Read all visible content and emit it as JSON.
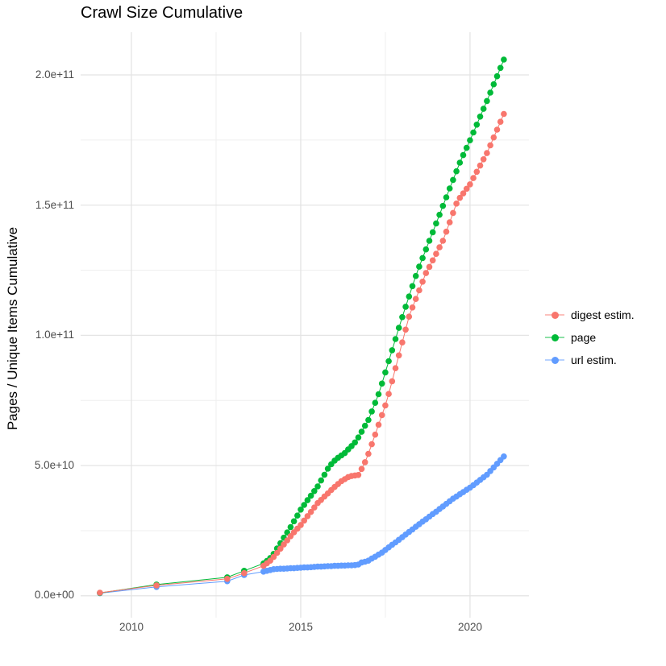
{
  "chart_data": {
    "type": "scatter",
    "title": "Crawl Size Cumulative",
    "xlabel": "",
    "ylabel": "Pages / Unique Items Cumulative",
    "value_unit": "items, stored in billions (1e9)",
    "legend_position": "right",
    "grid": {
      "major_color": "#e4e4e4",
      "minor_color": "#efefef"
    },
    "x_domain": [
      2008.5,
      2021.74
    ],
    "y_domain_billions": [
      -8.4,
      216.4
    ],
    "x_ticks": [
      {
        "value": 2010,
        "label": "2010"
      },
      {
        "value": 2015,
        "label": "2015"
      },
      {
        "value": 2020,
        "label": "2020"
      }
    ],
    "x_minor_ticks": [
      2012.5,
      2017.5
    ],
    "y_ticks": [
      {
        "value": 0,
        "label": "0.0e+00"
      },
      {
        "value": 50,
        "label": "5.0e+10"
      },
      {
        "value": 100,
        "label": "1.0e+11"
      },
      {
        "value": 150,
        "label": "1.5e+11"
      },
      {
        "value": 200,
        "label": "2.0e+11"
      }
    ],
    "y_minor_ticks": [
      25,
      75,
      125,
      175
    ],
    "series": [
      {
        "name": "digest estim.",
        "color": "#F8766D",
        "points": [
          [
            2009.07,
            1.2
          ],
          [
            2010.74,
            4.0
          ],
          [
            2012.83,
            6.5
          ],
          [
            2013.33,
            8.7
          ],
          [
            2013.9,
            11.5
          ],
          [
            2014.0,
            12.5
          ],
          [
            2014.1,
            13.5
          ],
          [
            2014.2,
            14.9
          ],
          [
            2014.3,
            16.5
          ],
          [
            2014.4,
            18.1
          ],
          [
            2014.5,
            19.7
          ],
          [
            2014.6,
            21.3
          ],
          [
            2014.7,
            22.9
          ],
          [
            2014.8,
            24.4
          ],
          [
            2014.9,
            25.8
          ],
          [
            2015.0,
            27.2
          ],
          [
            2015.1,
            28.9
          ],
          [
            2015.2,
            30.6
          ],
          [
            2015.3,
            32.2
          ],
          [
            2015.4,
            33.9
          ],
          [
            2015.5,
            35.6
          ],
          [
            2015.6,
            36.8
          ],
          [
            2015.7,
            38.1
          ],
          [
            2015.8,
            39.3
          ],
          [
            2015.9,
            40.6
          ],
          [
            2016.0,
            41.8
          ],
          [
            2016.1,
            42.9
          ],
          [
            2016.2,
            44.0
          ],
          [
            2016.3,
            44.8
          ],
          [
            2016.4,
            45.6
          ],
          [
            2016.5,
            46.0
          ],
          [
            2016.6,
            46.2
          ],
          [
            2016.7,
            46.4
          ],
          [
            2016.8,
            48.7
          ],
          [
            2016.9,
            51.3
          ],
          [
            2017.0,
            54.5
          ],
          [
            2017.1,
            58.2
          ],
          [
            2017.2,
            61.9
          ],
          [
            2017.3,
            65.7
          ],
          [
            2017.4,
            69.4
          ],
          [
            2017.5,
            73.1
          ],
          [
            2017.6,
            77.5
          ],
          [
            2017.7,
            82.4
          ],
          [
            2017.8,
            87.4
          ],
          [
            2017.9,
            92.3
          ],
          [
            2018.0,
            97.3
          ],
          [
            2018.1,
            102.2
          ],
          [
            2018.2,
            107.2
          ],
          [
            2018.3,
            110.7
          ],
          [
            2018.4,
            114.0
          ],
          [
            2018.5,
            117.3
          ],
          [
            2018.6,
            120.6
          ],
          [
            2018.7,
            123.9
          ],
          [
            2018.8,
            126.3
          ],
          [
            2018.9,
            128.8
          ],
          [
            2019.0,
            131.3
          ],
          [
            2019.1,
            133.8
          ],
          [
            2019.2,
            136.3
          ],
          [
            2019.3,
            139.8
          ],
          [
            2019.4,
            143.4
          ],
          [
            2019.5,
            147.0
          ],
          [
            2019.6,
            150.6
          ],
          [
            2019.7,
            152.8
          ],
          [
            2019.8,
            154.5
          ],
          [
            2019.9,
            156.3
          ],
          [
            2020.0,
            158.0
          ],
          [
            2020.1,
            160.4
          ],
          [
            2020.2,
            162.8
          ],
          [
            2020.3,
            165.2
          ],
          [
            2020.4,
            167.6
          ],
          [
            2020.5,
            170.0
          ],
          [
            2020.6,
            173.0
          ],
          [
            2020.7,
            176.0
          ],
          [
            2020.8,
            179.0
          ],
          [
            2020.9,
            182.0
          ],
          [
            2021.0,
            185.0
          ]
        ]
      },
      {
        "name": "page",
        "color": "#00BA38",
        "points": [
          [
            2009.07,
            1.1
          ],
          [
            2010.74,
            4.3
          ],
          [
            2012.83,
            7.1
          ],
          [
            2013.33,
            9.6
          ],
          [
            2013.9,
            12.4
          ],
          [
            2014.0,
            13.4
          ],
          [
            2014.1,
            14.5
          ],
          [
            2014.2,
            16.1
          ],
          [
            2014.3,
            18.2
          ],
          [
            2014.4,
            20.2
          ],
          [
            2014.5,
            22.3
          ],
          [
            2014.6,
            24.3
          ],
          [
            2014.7,
            26.4
          ],
          [
            2014.8,
            28.6
          ],
          [
            2014.9,
            30.8
          ],
          [
            2015.0,
            33.1
          ],
          [
            2015.1,
            34.9
          ],
          [
            2015.2,
            36.7
          ],
          [
            2015.3,
            38.4
          ],
          [
            2015.4,
            40.2
          ],
          [
            2015.5,
            42.0
          ],
          [
            2015.6,
            44.3
          ],
          [
            2015.7,
            46.5
          ],
          [
            2015.8,
            48.8
          ],
          [
            2015.9,
            50.5
          ],
          [
            2016.0,
            51.9
          ],
          [
            2016.1,
            53.0
          ],
          [
            2016.2,
            53.9
          ],
          [
            2016.3,
            54.8
          ],
          [
            2016.4,
            56.2
          ],
          [
            2016.5,
            57.5
          ],
          [
            2016.6,
            58.9
          ],
          [
            2016.7,
            60.8
          ],
          [
            2016.8,
            63.0
          ],
          [
            2016.9,
            65.3
          ],
          [
            2017.0,
            67.5
          ],
          [
            2017.1,
            70.8
          ],
          [
            2017.2,
            74.1
          ],
          [
            2017.3,
            77.4
          ],
          [
            2017.4,
            81.5
          ],
          [
            2017.5,
            85.8
          ],
          [
            2017.6,
            90.1
          ],
          [
            2017.7,
            94.3
          ],
          [
            2017.8,
            98.6
          ],
          [
            2017.9,
            102.9
          ],
          [
            2018.0,
            107.0
          ],
          [
            2018.1,
            111.0
          ],
          [
            2018.2,
            114.9
          ],
          [
            2018.3,
            118.9
          ],
          [
            2018.4,
            122.8
          ],
          [
            2018.5,
            126.4
          ],
          [
            2018.6,
            129.7
          ],
          [
            2018.7,
            133.0
          ],
          [
            2018.8,
            136.3
          ],
          [
            2018.9,
            139.6
          ],
          [
            2019.0,
            143.0
          ],
          [
            2019.1,
            146.3
          ],
          [
            2019.2,
            149.7
          ],
          [
            2019.3,
            153.0
          ],
          [
            2019.4,
            156.4
          ],
          [
            2019.5,
            159.7
          ],
          [
            2019.6,
            163.0
          ],
          [
            2019.7,
            166.3
          ],
          [
            2019.8,
            169.2
          ],
          [
            2019.9,
            172.0
          ],
          [
            2020.0,
            174.9
          ],
          [
            2020.1,
            177.9
          ],
          [
            2020.2,
            180.9
          ],
          [
            2020.3,
            184.0
          ],
          [
            2020.4,
            187.0
          ],
          [
            2020.5,
            190.0
          ],
          [
            2020.6,
            193.2
          ],
          [
            2020.7,
            196.4
          ],
          [
            2020.8,
            199.5
          ],
          [
            2020.9,
            202.7
          ],
          [
            2021.0,
            205.9
          ]
        ]
      },
      {
        "name": "url estim.",
        "color": "#619CFF",
        "points": [
          [
            2009.07,
            1.0
          ],
          [
            2010.74,
            3.4
          ],
          [
            2012.83,
            5.6
          ],
          [
            2013.33,
            8.0
          ],
          [
            2013.9,
            9.3
          ],
          [
            2014.0,
            9.6
          ],
          [
            2014.1,
            9.9
          ],
          [
            2014.2,
            10.2
          ],
          [
            2014.3,
            10.3
          ],
          [
            2014.4,
            10.4
          ],
          [
            2014.5,
            10.4
          ],
          [
            2014.6,
            10.5
          ],
          [
            2014.7,
            10.6
          ],
          [
            2014.8,
            10.6
          ],
          [
            2014.9,
            10.7
          ],
          [
            2015.0,
            10.8
          ],
          [
            2015.1,
            10.9
          ],
          [
            2015.2,
            10.9
          ],
          [
            2015.3,
            11.0
          ],
          [
            2015.4,
            11.1
          ],
          [
            2015.5,
            11.2
          ],
          [
            2015.6,
            11.2
          ],
          [
            2015.7,
            11.3
          ],
          [
            2015.8,
            11.4
          ],
          [
            2015.9,
            11.4
          ],
          [
            2016.0,
            11.5
          ],
          [
            2016.1,
            11.5
          ],
          [
            2016.2,
            11.6
          ],
          [
            2016.3,
            11.6
          ],
          [
            2016.4,
            11.7
          ],
          [
            2016.5,
            11.7
          ],
          [
            2016.6,
            11.8
          ],
          [
            2016.7,
            12.0
          ],
          [
            2016.8,
            12.8
          ],
          [
            2016.9,
            13.1
          ],
          [
            2017.0,
            13.5
          ],
          [
            2017.1,
            14.3
          ],
          [
            2017.2,
            15.0
          ],
          [
            2017.3,
            15.8
          ],
          [
            2017.4,
            16.6
          ],
          [
            2017.5,
            17.6
          ],
          [
            2017.6,
            18.6
          ],
          [
            2017.7,
            19.6
          ],
          [
            2017.8,
            20.5
          ],
          [
            2017.9,
            21.5
          ],
          [
            2018.0,
            22.5
          ],
          [
            2018.1,
            23.5
          ],
          [
            2018.2,
            24.5
          ],
          [
            2018.3,
            25.5
          ],
          [
            2018.4,
            26.5
          ],
          [
            2018.5,
            27.5
          ],
          [
            2018.6,
            28.5
          ],
          [
            2018.7,
            29.4
          ],
          [
            2018.8,
            30.4
          ],
          [
            2018.9,
            31.4
          ],
          [
            2019.0,
            32.3
          ],
          [
            2019.1,
            33.3
          ],
          [
            2019.2,
            34.3
          ],
          [
            2019.3,
            35.3
          ],
          [
            2019.4,
            36.3
          ],
          [
            2019.5,
            37.3
          ],
          [
            2019.6,
            38.1
          ],
          [
            2019.7,
            39.0
          ],
          [
            2019.8,
            39.8
          ],
          [
            2019.9,
            40.7
          ],
          [
            2020.0,
            41.5
          ],
          [
            2020.1,
            42.5
          ],
          [
            2020.2,
            43.5
          ],
          [
            2020.3,
            44.5
          ],
          [
            2020.4,
            45.5
          ],
          [
            2020.5,
            46.5
          ],
          [
            2020.6,
            47.9
          ],
          [
            2020.7,
            49.3
          ],
          [
            2020.8,
            50.7
          ],
          [
            2020.9,
            52.1
          ],
          [
            2021.0,
            53.5
          ]
        ]
      }
    ]
  }
}
